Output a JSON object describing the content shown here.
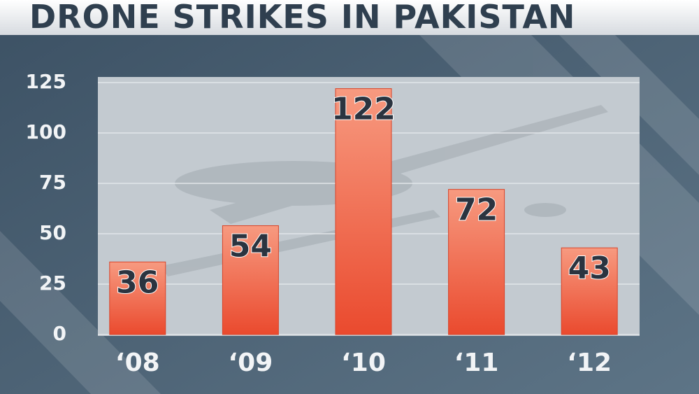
{
  "chart_data": {
    "type": "bar",
    "title": "DRONE STRIKES IN PAKISTAN",
    "categories": [
      "‘08",
      "‘09",
      "‘10",
      "‘11",
      "‘12"
    ],
    "values": [
      36,
      54,
      122,
      72,
      43
    ],
    "color": "#ee5a3e",
    "ylim": [
      0,
      125
    ],
    "yticks": [
      0,
      25,
      50,
      75,
      100,
      125
    ],
    "grid": true
  }
}
